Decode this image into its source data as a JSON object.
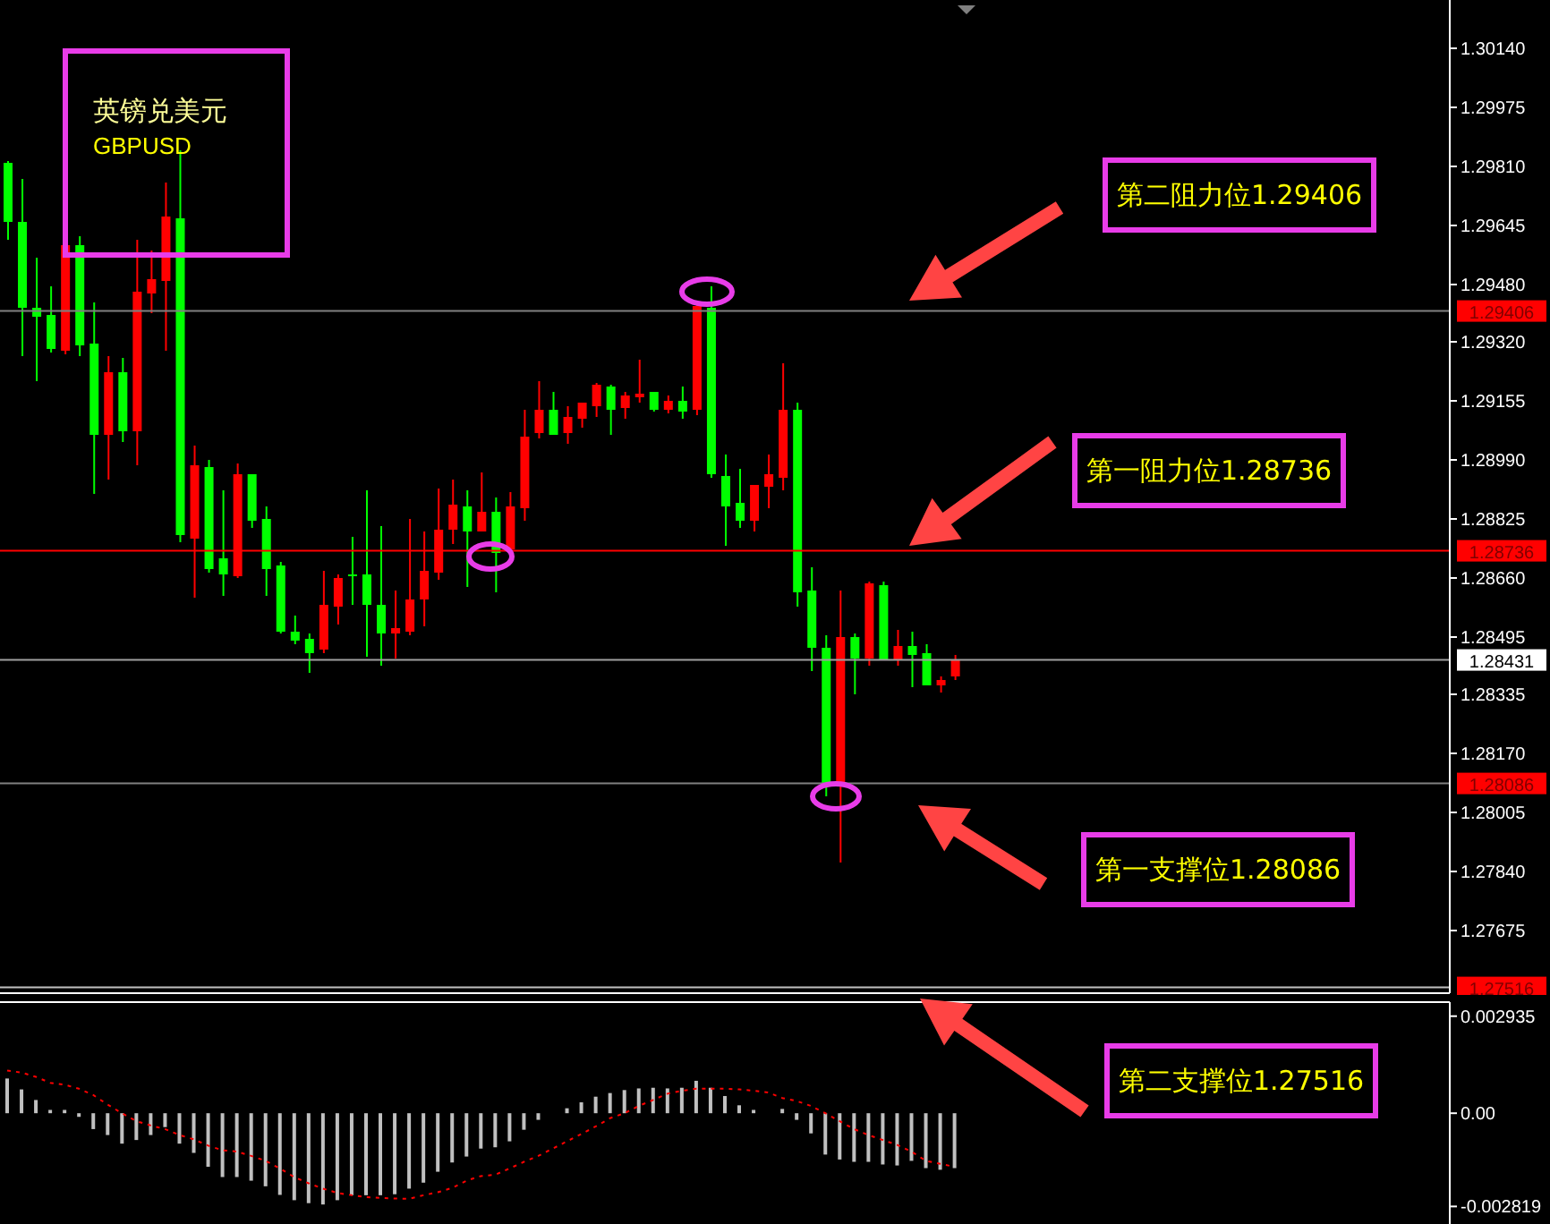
{
  "chart_data": [
    {
      "type": "candlestick",
      "title": "英镑兑美元",
      "subtitle": "GBPUSD",
      "categories": [
        null,
        null,
        null,
        null,
        null,
        null,
        null,
        null,
        null,
        null,
        null,
        null,
        null,
        null,
        null,
        null,
        null,
        null,
        null,
        null,
        null,
        null,
        null,
        null,
        null,
        null,
        null,
        null,
        null,
        null,
        null,
        null,
        null,
        null,
        null,
        null,
        null,
        null,
        null,
        null,
        null,
        null,
        null,
        null,
        null,
        null,
        null,
        null,
        null,
        null,
        null,
        null,
        null,
        null,
        null,
        null,
        null,
        null,
        null,
        null,
        null,
        null,
        null,
        null,
        null,
        null,
        null,
        null,
        null,
        null,
        null,
        null,
        null,
        null,
        null,
        null,
        null,
        null,
        null,
        null,
        null,
        null,
        null,
        null,
        null,
        null,
        null,
        null,
        null,
        null,
        null,
        null,
        null,
        null,
        null,
        null,
        null,
        null,
        null,
        null,
        null
      ],
      "ohlc": [
        [
          1.2982,
          1.29825,
          1.29605,
          1.29655
        ],
        [
          1.29655,
          1.29775,
          1.2928,
          1.29415
        ],
        [
          1.29415,
          1.29555,
          1.2921,
          1.2939
        ],
        [
          1.29395,
          1.29475,
          1.2929,
          1.293
        ],
        [
          1.29295,
          1.296,
          1.29285,
          1.2959
        ],
        [
          1.2959,
          1.29615,
          1.2928,
          1.2931
        ],
        [
          1.29315,
          1.2943,
          1.28895,
          1.2906
        ],
        [
          1.2906,
          1.2928,
          1.28935,
          1.29235
        ],
        [
          1.29235,
          1.29275,
          1.2904,
          1.2907
        ],
        [
          1.2907,
          1.29605,
          1.28975,
          1.2946
        ],
        [
          1.29455,
          1.29575,
          1.294,
          1.29495
        ],
        [
          1.2949,
          1.29765,
          1.29295,
          1.2967
        ],
        [
          1.29665,
          1.29855,
          1.2876,
          1.2878
        ],
        [
          1.2877,
          1.2903,
          1.28605,
          1.28975
        ],
        [
          1.2897,
          1.2899,
          1.28675,
          1.28685
        ],
        [
          1.28715,
          1.28905,
          1.2861,
          1.2867
        ],
        [
          1.28665,
          1.2898,
          1.2866,
          1.2895
        ],
        [
          1.2895,
          1.2895,
          1.288,
          1.2882
        ],
        [
          1.28825,
          1.2886,
          1.2861,
          1.28685
        ],
        [
          1.28695,
          1.28705,
          1.28505,
          1.2851
        ],
        [
          1.2851,
          1.28555,
          1.28475,
          1.28485
        ],
        [
          1.2849,
          1.28505,
          1.28395,
          1.2845
        ],
        [
          1.2846,
          1.2868,
          1.2845,
          1.28585
        ],
        [
          1.2858,
          1.2867,
          1.2853,
          1.2866
        ],
        [
          1.2867,
          1.28775,
          1.28585,
          1.28665
        ],
        [
          1.2867,
          1.28905,
          1.2844,
          1.28585
        ],
        [
          1.28585,
          1.28805,
          1.28415,
          1.28505
        ],
        [
          1.28505,
          1.28625,
          1.28435,
          1.2852
        ],
        [
          1.2851,
          1.28825,
          1.285,
          1.286
        ],
        [
          1.286,
          1.2879,
          1.28525,
          1.2868
        ],
        [
          1.28675,
          1.2891,
          1.28655,
          1.28795
        ],
        [
          1.28795,
          1.28935,
          1.28755,
          1.28865
        ],
        [
          1.2886,
          1.28905,
          1.28635,
          1.2879
        ],
        [
          1.2879,
          1.28955,
          1.2879,
          1.28845
        ],
        [
          1.28845,
          1.28885,
          1.2862,
          1.2873
        ],
        [
          1.2874,
          1.289,
          1.2874,
          1.2886
        ],
        [
          1.28855,
          1.2913,
          1.2882,
          1.29055
        ],
        [
          1.29065,
          1.2921,
          1.2905,
          1.2913
        ],
        [
          1.2913,
          1.2918,
          1.2906,
          1.2906
        ],
        [
          1.29065,
          1.2914,
          1.29035,
          1.2911
        ],
        [
          1.29105,
          1.2915,
          1.2908,
          1.2915
        ],
        [
          1.2914,
          1.29205,
          1.2911,
          1.292
        ],
        [
          1.29195,
          1.292,
          1.2906,
          1.2913
        ],
        [
          1.29135,
          1.2918,
          1.29105,
          1.2917
        ],
        [
          1.29165,
          1.2927,
          1.2915,
          1.29175
        ],
        [
          1.2918,
          1.2918,
          1.29125,
          1.2913
        ],
        [
          1.2913,
          1.2917,
          1.2912,
          1.29155
        ],
        [
          1.29155,
          1.29195,
          1.29105,
          1.29125
        ],
        [
          1.2913,
          1.2943,
          1.29115,
          1.2942
        ],
        [
          1.29415,
          1.29475,
          1.2894,
          1.2895
        ],
        [
          1.28945,
          1.29005,
          1.2875,
          1.2886
        ],
        [
          1.2887,
          1.28965,
          1.288,
          1.2882
        ],
        [
          1.2882,
          1.2892,
          1.2879,
          1.2892
        ],
        [
          1.28915,
          1.29005,
          1.28855,
          1.2895
        ],
        [
          1.2894,
          1.2926,
          1.28905,
          1.2913
        ],
        [
          1.2913,
          1.2915,
          1.2858,
          1.2862
        ],
        [
          1.28625,
          1.2869,
          1.284,
          1.28465
        ],
        [
          1.28465,
          1.285,
          1.2805,
          1.2808
        ],
        [
          1.2808,
          1.28625,
          1.27865,
          1.28495
        ],
        [
          1.28495,
          1.28505,
          1.28335,
          1.28435
        ],
        [
          1.28435,
          1.2865,
          1.28415,
          1.28645
        ],
        [
          1.2864,
          1.2865,
          1.2843,
          1.2843
        ],
        [
          1.2843,
          1.28515,
          1.28415,
          1.2847
        ],
        [
          1.2847,
          1.2851,
          1.28355,
          1.28445
        ],
        [
          1.2845,
          1.28475,
          1.2836,
          1.2836
        ],
        [
          1.2836,
          1.28385,
          1.2834,
          1.28375
        ],
        [
          1.28385,
          1.28445,
          1.28375,
          1.28431
        ],
        null,
        null,
        null,
        null,
        null,
        null,
        null,
        null,
        null,
        null,
        null,
        null,
        null,
        null,
        null,
        null,
        null,
        null,
        null,
        null,
        null,
        null,
        null,
        null,
        null,
        null,
        null,
        null,
        null,
        null,
        null,
        null,
        null,
        null
      ],
      "colors": [
        "#00ff00",
        "#00ff00",
        "#00ff00",
        "#00ff00",
        "#ff0000",
        "#00ff00",
        "#00ff00",
        "#ff0000",
        "#00ff00",
        "#ff0000",
        "#ff0000",
        "#ff0000",
        "#00ff00",
        "#ff0000",
        "#00ff00",
        "#00ff00",
        "#ff0000",
        "#00ff00",
        "#00ff00",
        "#00ff00",
        "#00ff00",
        "#00ff00",
        "#ff0000",
        "#ff0000",
        "#00ff00",
        "#00ff00",
        "#00ff00",
        "#ff0000",
        "#ff0000",
        "#ff0000",
        "#ff0000",
        "#ff0000",
        "#00ff00",
        "#ff0000",
        "#00ff00",
        "#ff0000",
        "#ff0000",
        "#ff0000",
        "#00ff00",
        "#ff0000",
        "#ff0000",
        "#ff0000",
        "#00ff00",
        "#ff0000",
        "#ff0000",
        "#00ff00",
        "#ff0000",
        "#00ff00",
        "#ff0000",
        "#00ff00",
        "#00ff00",
        "#00ff00",
        "#ff0000",
        "#ff0000",
        "#ff0000",
        "#00ff00",
        "#00ff00",
        "#00ff00",
        "#ff0000",
        "#00ff00",
        "#ff0000",
        "#00ff00",
        "#ff0000",
        "#00ff00",
        "#00ff00",
        "#ff0000",
        "#ff0000",
        null,
        null,
        null,
        null,
        null,
        null,
        null,
        null,
        null,
        null,
        null,
        null,
        null,
        null,
        null,
        null,
        null,
        null,
        null,
        null,
        null,
        null,
        null,
        null,
        null,
        null,
        null,
        null,
        null,
        null,
        null,
        null,
        null,
        null
      ],
      "ylim": [
        1.275,
        1.30275
      ],
      "yticks": [
        {
          "value": 1.3014,
          "label": "1.30140"
        },
        1.29975,
        {
          "value": 1.2981,
          "label": "1.29810"
        },
        1.29645,
        {
          "value": 1.2948,
          "label": "1.29480"
        },
        {
          "value": 1.2932,
          "label": "1.29320"
        },
        1.29155,
        {
          "value": 1.2899,
          "label": "1.28990"
        },
        1.28825,
        {
          "value": 1.2866,
          "label": "1.28660"
        },
        1.28495,
        1.28335,
        {
          "value": 1.2817,
          "label": "1.28170"
        },
        1.28005,
        {
          "value": 1.2784,
          "label": "1.27840"
        },
        1.27675
      ],
      "ref_lines": [
        {
          "axis": "y",
          "value": 1.29406,
          "label": "1.29406",
          "color": "#808080"
        },
        {
          "axis": "y",
          "value": 1.28736,
          "label": "1.28736",
          "color": "#ff0000"
        },
        {
          "axis": "y",
          "value": 1.28431,
          "label": "1.28431",
          "color": "#a0a0a0"
        },
        {
          "axis": "y",
          "value": 1.28086,
          "label": "1.28086",
          "color": "#808080"
        },
        {
          "axis": "y",
          "value": 1.27516,
          "label": "1.27516",
          "color": "#c0c0c0"
        }
      ],
      "annotations": [
        "第二阻力位1.29406",
        "第一阻力位1.28736",
        "第一支撑位1.28086",
        "第二支撑位1.27516"
      ],
      "tick_labels": "y",
      "grid": false,
      "legend": false
    },
    {
      "type": "bar",
      "categories": [
        null,
        null,
        null,
        null,
        null,
        null,
        null,
        null,
        null,
        null,
        null,
        null,
        null,
        null,
        null,
        null,
        null,
        null,
        null,
        null,
        null,
        null,
        null,
        null,
        null,
        null,
        null,
        null,
        null,
        null,
        null,
        null,
        null,
        null,
        null,
        null,
        null,
        null,
        null,
        null,
        null,
        null,
        null,
        null,
        null,
        null,
        null,
        null,
        null,
        null,
        null,
        null,
        null,
        null,
        null,
        null,
        null,
        null,
        null,
        null,
        null,
        null,
        null,
        null,
        null,
        null,
        null,
        null,
        null,
        null,
        null,
        null,
        null,
        null,
        null,
        null,
        null,
        null,
        null,
        null,
        null,
        null,
        null,
        null,
        null,
        null,
        null,
        null,
        null,
        null,
        null,
        null,
        null,
        null,
        null,
        null,
        null,
        null,
        null,
        null,
        null
      ],
      "series": [
        {
          "type": "bar",
          "color": "#c0c0c0",
          "values": [
            0.00105,
            0.00072,
            0.0004,
            0.0001,
            0.0001,
            -0.00011,
            -0.00048,
            -0.00066,
            -0.00092,
            -0.00081,
            -0.00066,
            -0.00042,
            -0.00092,
            -0.0012,
            -0.00162,
            -0.00193,
            -0.00193,
            -0.00204,
            -0.00221,
            -0.00247,
            -0.00263,
            -0.00272,
            -0.00276,
            -0.00263,
            -0.00248,
            -0.00248,
            -0.00248,
            -0.00245,
            -0.00228,
            -0.0021,
            -0.00177,
            -0.00149,
            -0.00131,
            -0.00107,
            -0.00103,
            -0.00085,
            -0.0005,
            -0.0002,
            0,
            0.00015,
            0.00033,
            0.0005,
            0.00061,
            0.0007,
            0.00075,
            0.00077,
            0.00075,
            0.00077,
            0.00098,
            0.00077,
            0.00052,
            0.00024,
            0.0001,
            0,
            0.00013,
            -0.0002,
            -0.00061,
            -0.00125,
            -0.0014,
            -0.00147,
            -0.00147,
            -0.00155,
            -0.00158,
            -0.00144,
            -0.00166,
            -0.00171,
            -0.00166,
            null,
            null,
            null,
            null,
            null,
            null,
            null,
            null,
            null,
            null,
            null,
            null,
            null,
            null,
            null,
            null,
            null,
            null,
            null,
            null,
            null,
            null,
            null,
            null,
            null,
            null,
            null,
            null,
            null,
            null,
            null,
            null,
            null,
            null
          ]
        },
        {
          "type": "line",
          "color": "#ff0000",
          "line_style": "dotted",
          "values": [
            0.00129,
            0.00123,
            0.0011,
            0.00092,
            0.00086,
            0.00074,
            0.00055,
            0.00026,
            0,
            -0.00024,
            -0.00037,
            -0.00048,
            -0.00066,
            -0.00079,
            -0.00098,
            -0.00112,
            -0.00116,
            -0.00129,
            -0.00144,
            -0.00167,
            -0.00193,
            -0.00212,
            -0.00228,
            -0.00241,
            -0.00248,
            -0.00254,
            -0.00256,
            -0.00258,
            -0.00259,
            -0.00248,
            -0.00239,
            -0.00226,
            -0.00204,
            -0.0019,
            -0.00186,
            -0.00167,
            -0.00147,
            -0.00129,
            -0.00107,
            -0.00085,
            -0.00063,
            -0.0004,
            -0.00015,
            0,
            0.00022,
            0.0004,
            0.00059,
            0.00068,
            0.00074,
            0.00074,
            0.00074,
            0.00072,
            0.00068,
            0.00063,
            0.00046,
            0.00037,
            0.00022,
            0,
            -0.00024,
            -0.00048,
            -0.00066,
            -0.00081,
            -0.00096,
            -0.00116,
            -0.00144,
            -0.00153,
            -0.00162,
            null,
            null,
            null,
            null,
            null,
            null,
            null,
            null,
            null,
            null,
            null,
            null,
            null,
            null,
            null,
            null,
            null,
            null,
            null,
            null,
            null,
            null,
            null,
            null,
            null,
            null,
            null,
            null,
            null,
            null,
            null,
            null,
            null,
            null
          ]
        }
      ],
      "ylim": [
        -0.00335,
        0.00336
      ],
      "yticks": [
        0.002935,
        {
          "value": 0,
          "label": "0.00"
        },
        -0.002819
      ],
      "marker": "none",
      "tick_labels": "y",
      "grid": false,
      "legend": false
    }
  ]
}
